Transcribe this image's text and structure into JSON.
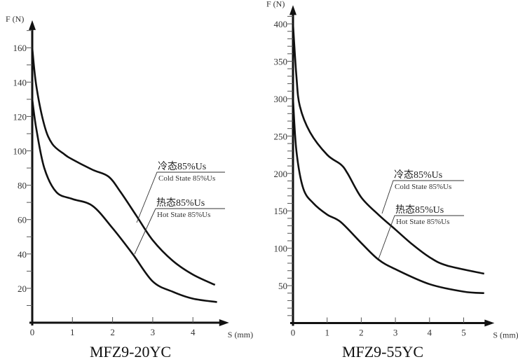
{
  "chart_data": [
    {
      "type": "line",
      "title": "MFZ9-20YC",
      "xlabel": "S (mm)",
      "ylabel": "F (N)",
      "xlim": [
        0,
        4.9
      ],
      "ylim": [
        0,
        176
      ],
      "x_ticks": [
        0,
        1,
        2,
        3,
        4
      ],
      "y_ticks": [
        20,
        40,
        60,
        80,
        100,
        120,
        140,
        160
      ],
      "grid": false,
      "series": [
        {
          "name": "冷态85%Us / Cold State 85%Us",
          "label_zh": "冷态85%Us",
          "label_en": "Cold State 85%Us",
          "x": [
            0,
            0.1,
            0.3,
            0.5,
            0.8,
            1.0,
            1.5,
            1.9,
            2.2,
            2.6,
            3.0,
            3.5,
            4.0,
            4.55
          ],
          "y": [
            160,
            138,
            115,
            104,
            98,
            95,
            89,
            85,
            76,
            62,
            48,
            36,
            28,
            22
          ]
        },
        {
          "name": "热态85%Us / Hot State 85%Us",
          "label_zh": "热态85%Us",
          "label_en": "Hot State 85%Us",
          "x": [
            0,
            0.1,
            0.3,
            0.6,
            1.0,
            1.5,
            2.0,
            2.5,
            3.0,
            3.5,
            4.0,
            4.6
          ],
          "y": [
            130,
            113,
            90,
            76,
            72,
            68,
            55,
            40,
            24,
            18,
            14,
            12
          ]
        }
      ]
    },
    {
      "type": "line",
      "title": "MFZ9-55YC",
      "xlabel": "S (mm)",
      "ylabel": "F (N)",
      "xlim": [
        0,
        5.9
      ],
      "ylim": [
        0,
        425
      ],
      "x_ticks": [
        0,
        1,
        2,
        3,
        4,
        5
      ],
      "y_ticks": [
        50,
        100,
        150,
        200,
        250,
        300,
        350,
        400
      ],
      "grid": false,
      "series": [
        {
          "name": "冷态85%Us / Cold State 85%Us",
          "label_zh": "冷态85%Us",
          "label_en": "Cold State 85%Us",
          "x": [
            0,
            0.1,
            0.2,
            0.5,
            1.0,
            1.4,
            1.6,
            2.0,
            2.5,
            3.0,
            3.5,
            4.0,
            4.5,
            5.6
          ],
          "y": [
            400,
            330,
            290,
            255,
            225,
            212,
            200,
            168,
            145,
            125,
            105,
            88,
            77,
            66
          ]
        },
        {
          "name": "热态85%Us / Hot State 85%Us",
          "label_zh": "热态85%Us",
          "label_en": "Hot State 85%Us",
          "x": [
            0,
            0.1,
            0.3,
            0.6,
            1.0,
            1.4,
            2.0,
            2.5,
            3.0,
            4.0,
            5.0,
            5.6
          ],
          "y": [
            300,
            230,
            180,
            160,
            145,
            135,
            107,
            85,
            72,
            52,
            42,
            40
          ]
        }
      ]
    }
  ]
}
